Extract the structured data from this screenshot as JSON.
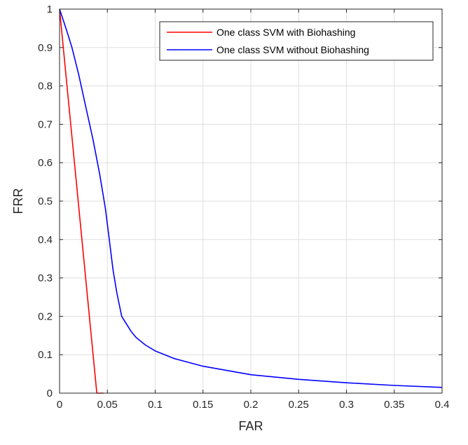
{
  "chart_data": {
    "type": "line",
    "xlabel": "FAR",
    "ylabel": "FRR",
    "xlim": [
      0,
      0.4
    ],
    "ylim": [
      0,
      1
    ],
    "xticks": [
      0,
      0.05,
      0.1,
      0.15,
      0.2,
      0.25,
      0.3,
      0.35,
      0.4
    ],
    "xtick_labels": [
      "0",
      "0.05",
      "0.1",
      "0.15",
      "0.2",
      "0.25",
      "0.3",
      "0.35",
      "0.4"
    ],
    "yticks": [
      0,
      0.1,
      0.2,
      0.3,
      0.4,
      0.5,
      0.6,
      0.7,
      0.8,
      0.9,
      1
    ],
    "ytick_labels": [
      "0",
      "0.1",
      "0.2",
      "0.3",
      "0.4",
      "0.5",
      "0.6",
      "0.7",
      "0.8",
      "0.9",
      "1"
    ],
    "grid": true,
    "legend_position": "top-right",
    "series": [
      {
        "name": "One class SVM with Biohashing",
        "color": "#ff0000",
        "x": [
          0,
          0.039,
          0.041,
          0.046
        ],
        "y": [
          1,
          0,
          0,
          0
        ]
      },
      {
        "name": "One class SVM without Biohashing",
        "color": "#0000ff",
        "x": [
          0,
          0.004,
          0.008,
          0.013,
          0.02,
          0.027,
          0.035,
          0.042,
          0.048,
          0.052,
          0.056,
          0.06,
          0.065,
          0.07,
          0.075,
          0.08,
          0.09,
          0.1,
          0.12,
          0.15,
          0.2,
          0.25,
          0.3,
          0.35,
          0.4
        ],
        "y": [
          1,
          0.97,
          0.94,
          0.9,
          0.83,
          0.75,
          0.66,
          0.57,
          0.48,
          0.4,
          0.32,
          0.26,
          0.2,
          0.18,
          0.16,
          0.145,
          0.125,
          0.11,
          0.09,
          0.07,
          0.048,
          0.036,
          0.027,
          0.02,
          0.015
        ]
      }
    ]
  }
}
